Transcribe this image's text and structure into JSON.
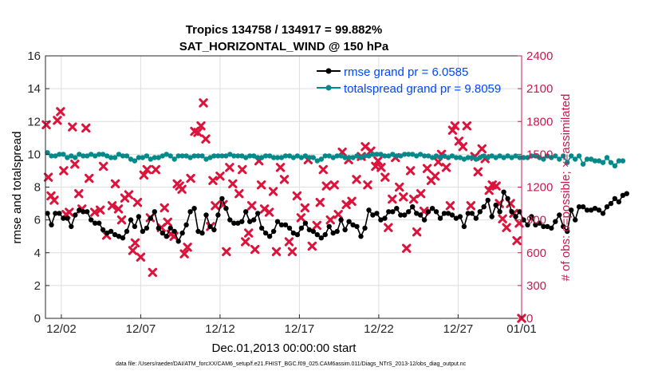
{
  "chart_data": {
    "type": "line",
    "title": "Tropics 134758 / 134917 = 99.882%",
    "subtitle": "SAT_HORIZONTAL_WIND @ 150 hPa",
    "xlabel": "Dec.01,2013 00:00:00 start",
    "ylabel": "rmse and totalspread",
    "y2label": "# of obs: o=possible; ×=assimilated",
    "footnote": "data file: /Users/raeder/DAI/ATM_forcXX/CAM6_setup/f.e21.FHIST_BGC.f09_025.CAM6assim.011/Diags_NTrS_2013-12/obs_diag_output.nc",
    "xlim": [
      0,
      30
    ],
    "ylim": [
      0,
      16
    ],
    "y2lim": [
      0,
      2400
    ],
    "x_ticks": [
      1,
      6,
      11,
      16,
      21,
      26,
      30
    ],
    "x_tick_labels": [
      "12/02",
      "12/07",
      "12/12",
      "12/17",
      "12/22",
      "12/27",
      "01/01"
    ],
    "y_ticks": [
      0,
      2,
      4,
      6,
      8,
      10,
      12,
      14,
      16
    ],
    "y2_ticks": [
      0,
      300,
      600,
      900,
      1200,
      1500,
      1800,
      2100,
      2400
    ],
    "colors": {
      "rmse": "#000000",
      "spread": "#008b8b",
      "obs": "#dc143c",
      "y2axis": "#c8194e",
      "legend_text": "#0047ff"
    },
    "series": [
      {
        "name": "rmse grand pr = 6.0585",
        "color": "#000000",
        "x_start": 0.125,
        "x_step": 0.25,
        "values": [
          6.4,
          5.7,
          6.4,
          6.4,
          6.1,
          6.1,
          5.6,
          6.3,
          6.6,
          6.5,
          6.5,
          6.0,
          5.8,
          5.8,
          5.4,
          5.2,
          5.3,
          5.1,
          5.0,
          4.9,
          5.3,
          6.0,
          5.6,
          6.2,
          5.3,
          5.5,
          6.1,
          6.5,
          5.5,
          5.2,
          5.0,
          5.5,
          5.3,
          4.7,
          5.2,
          5.7,
          6.5,
          6.7,
          5.3,
          5.2,
          6.3,
          5.6,
          5.4,
          6.3,
          7.3,
          6.7,
          6.0,
          5.8,
          5.8,
          5.9,
          6.5,
          5.9,
          6.0,
          6.4,
          5.5,
          5.2,
          5.0,
          5.3,
          5.9,
          5.7,
          5.7,
          5.5,
          5.2,
          5.1,
          5.5,
          5.8,
          5.4,
          5.3,
          5.1,
          4.9,
          5.1,
          5.6,
          5.2,
          5.3,
          6.0,
          5.4,
          5.9,
          5.7,
          5.6,
          5.0,
          5.5,
          6.6,
          6.3,
          6.4,
          6.0,
          6.1,
          6.5,
          6.5,
          6.7,
          6.3,
          6.3,
          6.5,
          6.8,
          6.4,
          6.3,
          6.0,
          6.5,
          6.7,
          6.5,
          6.1,
          6.4,
          6.4,
          6.3,
          6.1,
          6.2,
          5.6,
          6.4,
          6.4,
          6.1,
          6.5,
          6.8,
          7.2,
          6.2,
          6.9,
          6.5,
          7.7,
          7.3,
          6.5,
          6.2,
          6.5,
          6.0,
          5.7,
          6.2,
          5.7,
          5.8,
          5.6,
          5.6,
          5.5,
          5.9,
          6.3,
          5.6,
          5.3,
          6.6,
          6.0,
          6.8,
          6.8,
          6.6,
          6.6,
          6.7,
          6.6,
          6.4,
          6.8,
          7.0,
          7.3,
          7.1,
          7.5,
          7.6
        ]
      },
      {
        "name": "totalspread grand pr = 9.8059",
        "color": "#008b8b",
        "x_start": 0.125,
        "x_step": 0.25,
        "values": [
          10.1,
          9.9,
          9.9,
          10.0,
          10.0,
          9.8,
          9.9,
          9.8,
          10.0,
          9.9,
          9.9,
          10.0,
          9.9,
          10.0,
          10.0,
          9.9,
          9.8,
          9.8,
          10.0,
          9.9,
          9.9,
          9.7,
          9.6,
          9.8,
          9.8,
          9.9,
          9.7,
          9.8,
          9.8,
          9.9,
          10.0,
          9.9,
          9.7,
          9.9,
          9.9,
          9.9,
          9.8,
          9.9,
          9.9,
          9.9,
          9.7,
          9.8,
          9.9,
          9.9,
          9.9,
          9.9,
          10.0,
          9.9,
          9.9,
          9.9,
          9.8,
          9.9,
          9.9,
          9.8,
          9.8,
          9.9,
          9.9,
          9.8,
          9.8,
          9.8,
          9.9,
          9.9,
          9.8,
          9.9,
          9.8,
          9.9,
          9.8,
          9.8,
          9.6,
          9.7,
          9.9,
          9.9,
          9.8,
          9.9,
          9.9,
          9.8,
          9.8,
          9.8,
          9.9,
          9.8,
          9.9,
          9.9,
          10.0,
          10.0,
          10.0,
          9.9,
          9.9,
          10.0,
          9.9,
          9.9,
          10.0,
          10.0,
          10.0,
          9.9,
          10.0,
          9.9,
          9.9,
          9.8,
          9.9,
          9.8,
          9.9,
          9.8,
          9.9,
          9.8,
          9.8,
          9.7,
          9.8,
          9.8,
          9.7,
          9.8,
          9.9,
          9.8,
          9.9,
          9.8,
          9.9,
          9.8,
          9.9,
          9.8,
          9.9,
          9.8,
          9.8,
          9.8,
          9.9,
          9.9,
          9.8,
          9.7,
          9.9,
          9.8,
          9.9,
          9.7,
          9.9,
          9.5,
          9.9,
          9.7,
          9.9,
          9.4,
          9.7,
          9.7,
          9.6,
          9.6,
          9.5,
          9.8,
          9.5,
          9.3,
          9.6,
          9.6
        ]
      }
    ],
    "obs_assimilated": {
      "name": "# of obs assimilated",
      "color": "#dc143c",
      "points": [
        [
          0.05,
          1770
        ],
        [
          0.18,
          1290
        ],
        [
          0.35,
          1120
        ],
        [
          0.55,
          1080
        ],
        [
          0.75,
          1810
        ],
        [
          0.95,
          1890
        ],
        [
          1.15,
          1350
        ],
        [
          1.3,
          950
        ],
        [
          1.5,
          970
        ],
        [
          1.7,
          1750
        ],
        [
          1.85,
          1410
        ],
        [
          2.1,
          1140
        ],
        [
          2.3,
          1000
        ],
        [
          2.55,
          1740
        ],
        [
          2.75,
          1280
        ],
        [
          3.1,
          970
        ],
        [
          3.45,
          990
        ],
        [
          3.65,
          1390
        ],
        [
          3.85,
          760
        ],
        [
          4.2,
          1030
        ],
        [
          4.4,
          1230
        ],
        [
          4.6,
          1000
        ],
        [
          4.8,
          900
        ],
        [
          5.0,
          1100
        ],
        [
          5.25,
          1130
        ],
        [
          5.5,
          620
        ],
        [
          5.65,
          690
        ],
        [
          5.8,
          1060
        ],
        [
          6.0,
          560
        ],
        [
          6.2,
          1310
        ],
        [
          6.4,
          1360
        ],
        [
          6.6,
          920
        ],
        [
          6.75,
          420
        ],
        [
          6.95,
          1360
        ],
        [
          7.3,
          830
        ],
        [
          7.5,
          1010
        ],
        [
          7.7,
          880
        ],
        [
          7.9,
          770
        ],
        [
          8.1,
          750
        ],
        [
          8.3,
          1230
        ],
        [
          8.45,
          1210
        ],
        [
          8.6,
          1180
        ],
        [
          8.75,
          590
        ],
        [
          8.95,
          650
        ],
        [
          9.15,
          1280
        ],
        [
          9.4,
          1710
        ],
        [
          9.6,
          1700
        ],
        [
          9.8,
          1760
        ],
        [
          9.95,
          1970
        ],
        [
          10.1,
          1640
        ],
        [
          10.4,
          840
        ],
        [
          10.55,
          1260
        ],
        [
          10.7,
          1030
        ],
        [
          11.0,
          1300
        ],
        [
          11.2,
          1040
        ],
        [
          11.4,
          610
        ],
        [
          11.6,
          1380
        ],
        [
          11.8,
          1230
        ],
        [
          12.2,
          1140
        ],
        [
          12.4,
          1360
        ],
        [
          12.6,
          700
        ],
        [
          12.8,
          780
        ],
        [
          13.0,
          1030
        ],
        [
          13.2,
          630
        ],
        [
          13.45,
          1440
        ],
        [
          13.6,
          1220
        ],
        [
          13.8,
          1000
        ],
        [
          14.1,
          970
        ],
        [
          14.35,
          1160
        ],
        [
          14.55,
          610
        ],
        [
          14.8,
          1380
        ],
        [
          15.05,
          1270
        ],
        [
          15.35,
          700
        ],
        [
          15.55,
          610
        ],
        [
          15.85,
          1120
        ],
        [
          16.1,
          920
        ],
        [
          16.35,
          1010
        ],
        [
          16.55,
          1450
        ],
        [
          16.8,
          660
        ],
        [
          17.1,
          850
        ],
        [
          17.3,
          1060
        ],
        [
          17.5,
          1360
        ],
        [
          17.7,
          1210
        ],
        [
          17.95,
          900
        ],
        [
          18.2,
          1220
        ],
        [
          18.45,
          950
        ],
        [
          18.7,
          1520
        ],
        [
          18.95,
          1040
        ],
        [
          19.1,
          1450
        ],
        [
          19.3,
          1070
        ],
        [
          19.6,
          1270
        ],
        [
          19.9,
          1480
        ],
        [
          20.15,
          1570
        ],
        [
          20.3,
          1220
        ],
        [
          20.5,
          1530
        ],
        [
          20.8,
          1390
        ],
        [
          20.95,
          1440
        ],
        [
          21.15,
          1380
        ],
        [
          21.4,
          1290
        ],
        [
          21.6,
          830
        ],
        [
          21.85,
          1090
        ],
        [
          22.05,
          1470
        ],
        [
          22.3,
          1200
        ],
        [
          22.55,
          1110
        ],
        [
          22.75,
          640
        ],
        [
          23.0,
          1350
        ],
        [
          23.2,
          1090
        ],
        [
          23.4,
          790
        ],
        [
          23.65,
          1140
        ],
        [
          23.85,
          980
        ],
        [
          24.05,
          1370
        ],
        [
          24.3,
          1260
        ],
        [
          24.55,
          1300
        ],
        [
          24.75,
          1430
        ],
        [
          24.95,
          1500
        ],
        [
          25.25,
          1380
        ],
        [
          25.5,
          1030
        ],
        [
          25.65,
          1720
        ],
        [
          25.8,
          1760
        ],
        [
          26.05,
          1620
        ],
        [
          26.3,
          1570
        ],
        [
          26.55,
          1760
        ],
        [
          26.8,
          1030
        ],
        [
          27.05,
          1480
        ],
        [
          27.25,
          1340
        ],
        [
          27.5,
          1550
        ],
        [
          27.7,
          1460
        ],
        [
          27.95,
          1170
        ],
        [
          28.15,
          1220
        ],
        [
          28.4,
          1210
        ],
        [
          28.6,
          1050
        ],
        [
          28.8,
          910
        ],
        [
          29.05,
          830
        ],
        [
          29.3,
          1050
        ],
        [
          29.5,
          960
        ],
        [
          29.7,
          710
        ],
        [
          29.85,
          870
        ],
        [
          30.0,
          0
        ]
      ]
    },
    "legend": [
      "rmse grand pr = 6.0585",
      "totalspread grand pr = 9.8059"
    ],
    "legend_position": "top-right"
  }
}
